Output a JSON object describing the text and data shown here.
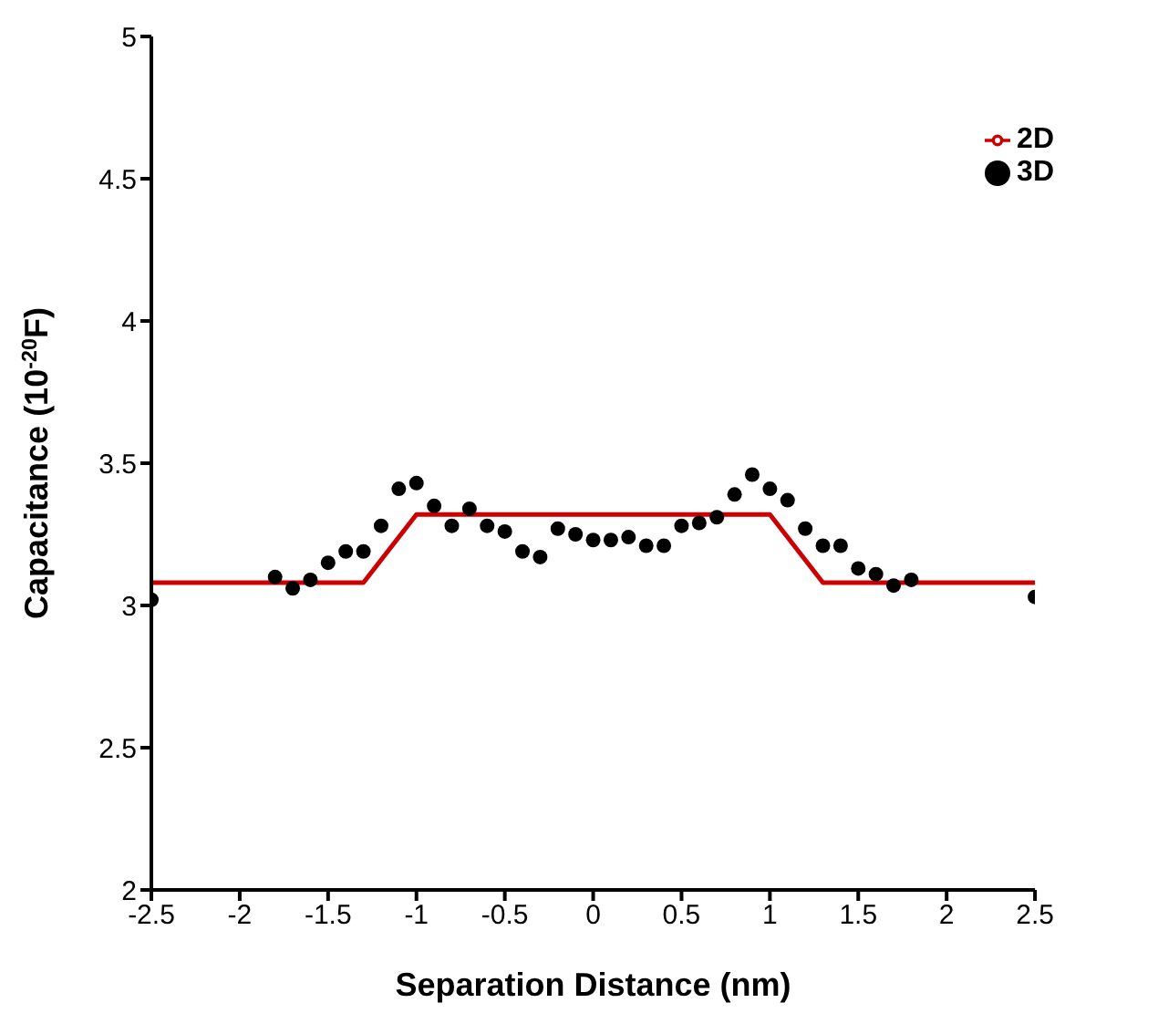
{
  "chart_data": {
    "type": "line",
    "xlabel": "Separation Distance (nm)",
    "ylabel": "Capacitance (10$^{-20}$F)",
    "xlim": [
      -2.5,
      2.5
    ],
    "xticks": [
      -2.5,
      -2,
      -1.5,
      -1,
      -0.5,
      0,
      0.5,
      1,
      1.5,
      2,
      2.5
    ],
    "ylim": [
      2,
      5
    ],
    "yticks": [
      2,
      2.5,
      3,
      3.5,
      4,
      4.5,
      5
    ],
    "grid": false,
    "legend": "top right",
    "series": [
      {
        "name": "2D",
        "color": "#cc0000",
        "marker": "none",
        "line_style": "solid",
        "x": [
          -2.5,
          -1.3,
          -1,
          1,
          1.3,
          2.5
        ],
        "values": [
          3.08,
          3.08,
          3.32,
          3.32,
          3.08,
          3.08
        ]
      },
      {
        "name": "3D",
        "type": "scatter",
        "color": "#000000",
        "marker": "circle",
        "x": [
          -2.5,
          -1.8,
          -1.7,
          -1.6,
          -1.5,
          -1.4,
          -1.3,
          -1.2,
          -1.1,
          -1.0,
          -0.9,
          -0.8,
          -0.7,
          -0.6,
          -0.5,
          -0.4,
          -0.3,
          -0.2,
          -0.1,
          0,
          0.1,
          0.2,
          0.3,
          0.4,
          0.5,
          0.6,
          0.7,
          0.8,
          0.9,
          1.0,
          1.1,
          1.2,
          1.3,
          1.4,
          1.5,
          1.6,
          1.7,
          1.8,
          2.5
        ],
        "values": [
          3.02,
          3.1,
          3.06,
          3.09,
          3.15,
          3.19,
          3.19,
          3.28,
          3.41,
          3.43,
          3.35,
          3.28,
          3.34,
          3.28,
          3.26,
          3.19,
          3.17,
          3.27,
          3.25,
          3.23,
          3.23,
          3.24,
          3.21,
          3.21,
          3.28,
          3.29,
          3.31,
          3.39,
          3.46,
          3.41,
          3.37,
          3.27,
          3.21,
          3.21,
          3.13,
          3.11,
          3.07,
          3.09,
          3.03
        ]
      }
    ]
  }
}
